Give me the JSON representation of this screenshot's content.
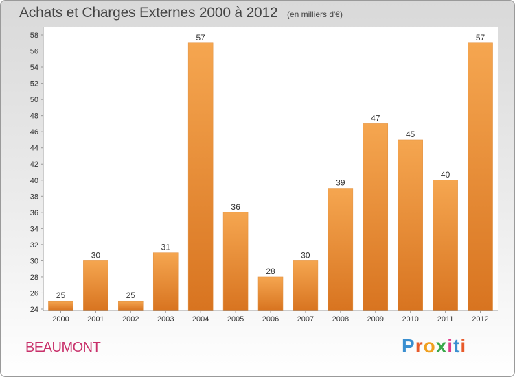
{
  "title": "Achats et Charges Externes 2000 à 2012",
  "subtitle": "(en milliers d'€)",
  "footer": {
    "city": "BEAUMONT",
    "logo_text": "Proxiti",
    "logo_colors": [
      "#3a8fd0",
      "#e85a2a",
      "#f0a020",
      "#3aa84a",
      "#e03a8a",
      "#3a8fd0",
      "#e85a2a"
    ]
  },
  "chart_data": {
    "type": "bar",
    "title": "Achats et Charges Externes 2000 à 2012",
    "subtitle": "(en milliers d'€)",
    "categories": [
      "2000",
      "2001",
      "2002",
      "2003",
      "2004",
      "2005",
      "2006",
      "2007",
      "2008",
      "2009",
      "2010",
      "2011",
      "2012"
    ],
    "values": [
      25,
      30,
      25,
      31,
      57,
      36,
      28,
      30,
      39,
      47,
      45,
      40,
      57
    ],
    "ylim": [
      24,
      58
    ],
    "ytick_step": 2,
    "grid": false,
    "bar_color_top": "#f5a650",
    "bar_color_bottom": "#d87420"
  }
}
